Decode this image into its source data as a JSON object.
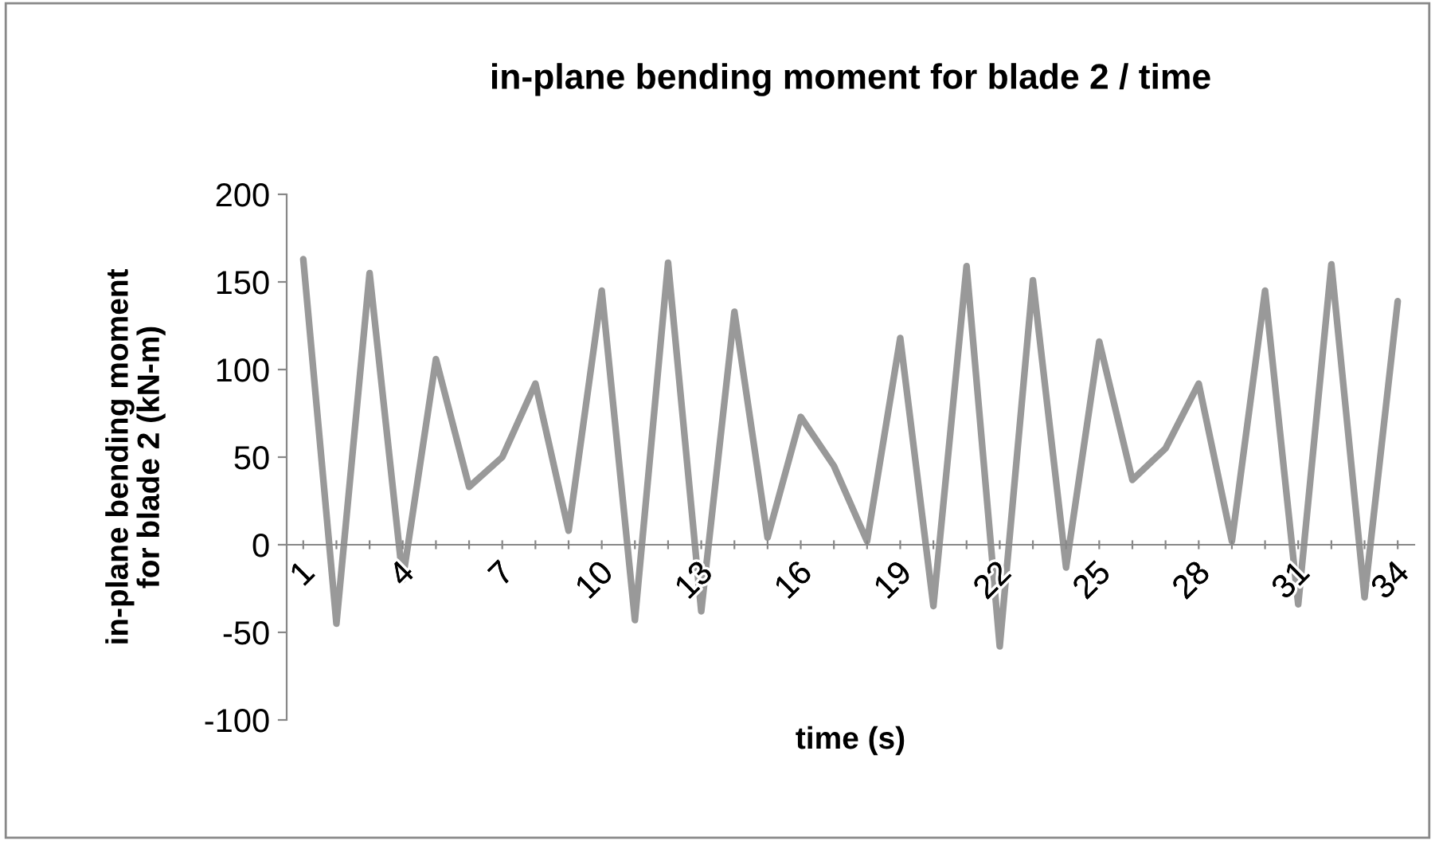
{
  "chart_data": {
    "type": "line",
    "title": "in-plane bending moment for blade 2 / time",
    "xlabel": "time (s)",
    "ylabel": "in-plane bending moment\nfor blade 2 (kN-m)",
    "categories": [
      "1",
      null,
      null,
      "4",
      null,
      null,
      "7",
      null,
      null,
      "10",
      null,
      null,
      "13",
      null,
      null,
      "16",
      null,
      null,
      "19",
      null,
      null,
      "22",
      null,
      null,
      "25",
      null,
      null,
      "28",
      null,
      null,
      "31",
      null,
      null,
      "34"
    ],
    "series": [
      {
        "color": "#999999",
        "values": [
          163,
          -45,
          155,
          -20,
          106,
          33,
          50,
          92,
          8,
          145,
          -43,
          161,
          -38,
          133,
          4,
          73,
          45,
          2,
          118,
          -35,
          159,
          -58,
          151,
          -13,
          116,
          37,
          55,
          92,
          2,
          145,
          -34,
          160,
          -30,
          139
        ]
      }
    ],
    "ylim": [
      -100,
      200
    ],
    "yticks": [
      -100,
      -50,
      0,
      50,
      100,
      150,
      200
    ],
    "grid": false,
    "legend": false,
    "marker": "none",
    "line_style": "solid"
  }
}
